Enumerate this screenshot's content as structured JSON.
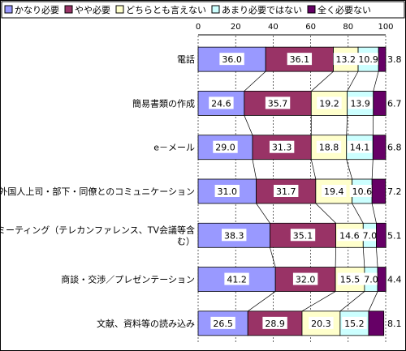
{
  "chart_data": {
    "type": "bar",
    "orientation": "horizontal",
    "stacked": true,
    "percent_stacked": true,
    "xlim": [
      0,
      100
    ],
    "x_ticks": [
      "0",
      "20",
      "40",
      "60",
      "80",
      "100"
    ],
    "categories": [
      "電話",
      "簡易書類の作成",
      "e－メール",
      "外国人上司・部下・同僚とのコミュニケーション",
      "ミーティング（テレカンファレンス、TV会議等含む）",
      "商談・交渉／プレゼンテーション",
      "文献、資料等の読み込み"
    ],
    "category_lines": [
      [
        "電話"
      ],
      [
        "簡易書類の作成"
      ],
      [
        "e－メール"
      ],
      [
        "外国人上司・部下・同僚とのコミュニケーション"
      ],
      [
        "ミーティング（テレカンファレンス、TV会議等含",
        "む）"
      ],
      [
        "商談・交渉／プレゼンテーション"
      ],
      [
        "文献、資料等の読み込み"
      ]
    ],
    "series": [
      {
        "name": "かなり必要",
        "color": "#9999ff",
        "values": [
          36.0,
          24.6,
          29.0,
          31.0,
          38.3,
          41.2,
          26.5
        ]
      },
      {
        "name": "やや必要",
        "color": "#993366",
        "values": [
          36.1,
          35.7,
          31.3,
          31.7,
          35.1,
          32.0,
          28.9
        ]
      },
      {
        "name": "どちらとも言えない",
        "color": "#ffffcc",
        "values": [
          13.2,
          19.2,
          18.8,
          19.4,
          14.6,
          15.5,
          20.3
        ]
      },
      {
        "name": "あまり必要ではない",
        "color": "#ccffff",
        "values": [
          10.9,
          13.9,
          14.1,
          10.6,
          7.0,
          7.0,
          15.2
        ]
      },
      {
        "name": "全く必要ない",
        "color": "#660066",
        "values": [
          3.8,
          6.7,
          6.8,
          7.2,
          5.1,
          4.4,
          8.1
        ]
      }
    ],
    "grid": true,
    "legend_position": "top"
  }
}
